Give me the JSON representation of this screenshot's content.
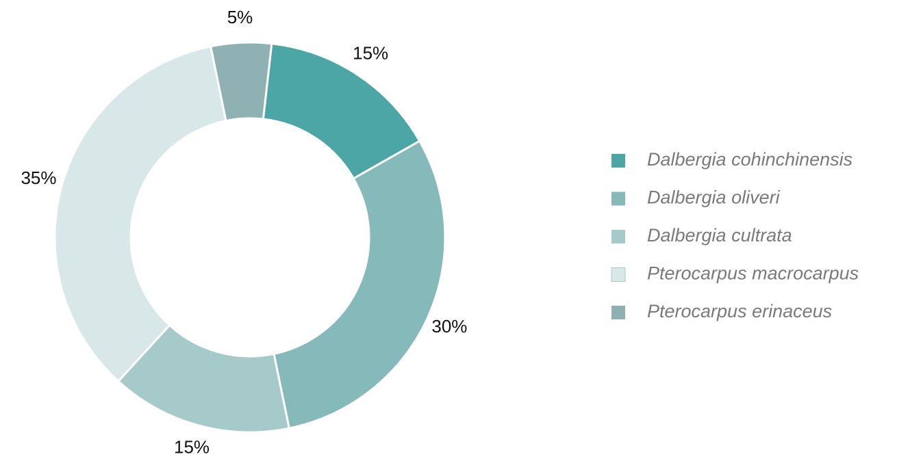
{
  "chart_data": {
    "type": "pie",
    "categories": [
      "Dalbergia cohinchinensis",
      "Dalbergia oliveri",
      "Dalbergia cultrata",
      "Pterocarpus macrocarpus",
      "Pterocarpus erinaceus"
    ],
    "values": [
      15,
      30,
      15,
      35,
      5
    ],
    "value_labels": [
      "15%",
      "30%",
      "15%",
      "35%",
      "5%"
    ],
    "colors": [
      "#4ca6a5",
      "#86b9b9",
      "#a6caca",
      "#d8e8e8",
      "#8fb1b4"
    ],
    "legend": "right"
  }
}
